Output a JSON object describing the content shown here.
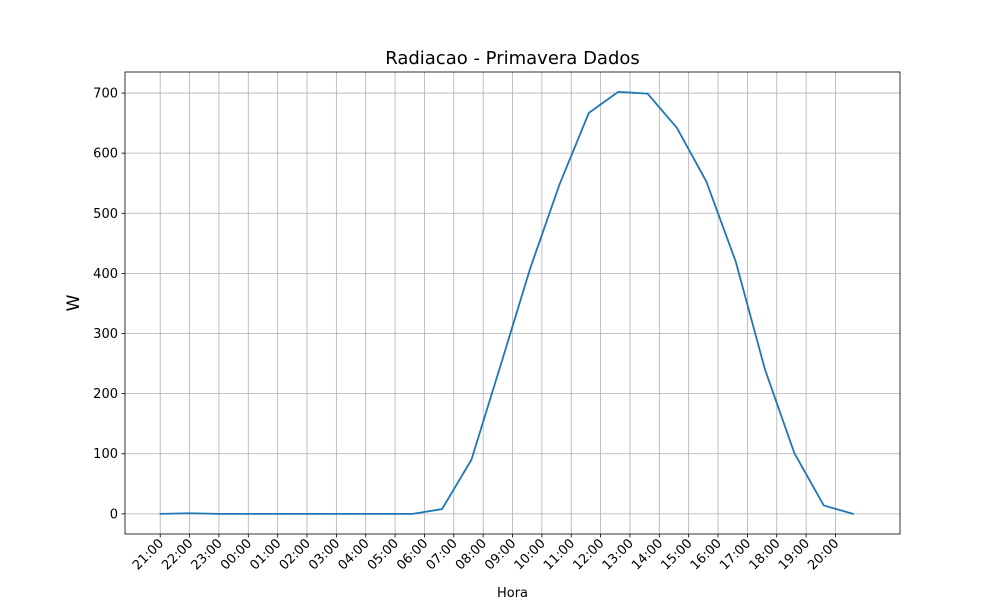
{
  "chart_data": {
    "type": "line",
    "title": "Radiacao - Primavera Dados",
    "xlabel": "Hora",
    "ylabel": "W",
    "ylim": [
      -33.5,
      735
    ],
    "yticks": [
      0,
      100,
      200,
      300,
      400,
      500,
      600,
      700
    ],
    "grid": true,
    "x_tick_labels": [
      "21:00",
      "22:00",
      "23:00",
      "00:00",
      "01:00",
      "02:00",
      "03:00",
      "04:00",
      "05:00",
      "06:00",
      "07:00",
      "08:00",
      "09:00",
      "10:00",
      "11:00",
      "12:00",
      "13:00",
      "14:00",
      "15:00",
      "16:00",
      "17:00",
      "18:00",
      "19:00",
      "20:00"
    ],
    "series": [
      {
        "color": "#1f77b4",
        "points": [
          [
            0,
            0
          ],
          [
            1,
            1
          ],
          [
            2,
            0
          ],
          [
            3,
            0
          ],
          [
            4,
            0
          ],
          [
            5,
            0
          ],
          [
            6,
            0
          ],
          [
            7,
            0
          ],
          [
            8.6,
            0
          ],
          [
            9.6,
            8
          ],
          [
            10.6,
            90
          ],
          [
            11.6,
            248
          ],
          [
            12.6,
            408
          ],
          [
            13.6,
            548
          ],
          [
            14.6,
            667
          ],
          [
            15.6,
            702
          ],
          [
            16.6,
            699
          ],
          [
            17.6,
            642
          ],
          [
            18.6,
            553
          ],
          [
            19.6,
            420
          ],
          [
            20.6,
            240
          ],
          [
            21.6,
            101
          ],
          [
            22.6,
            14
          ],
          [
            23.6,
            0
          ]
        ]
      }
    ]
  }
}
